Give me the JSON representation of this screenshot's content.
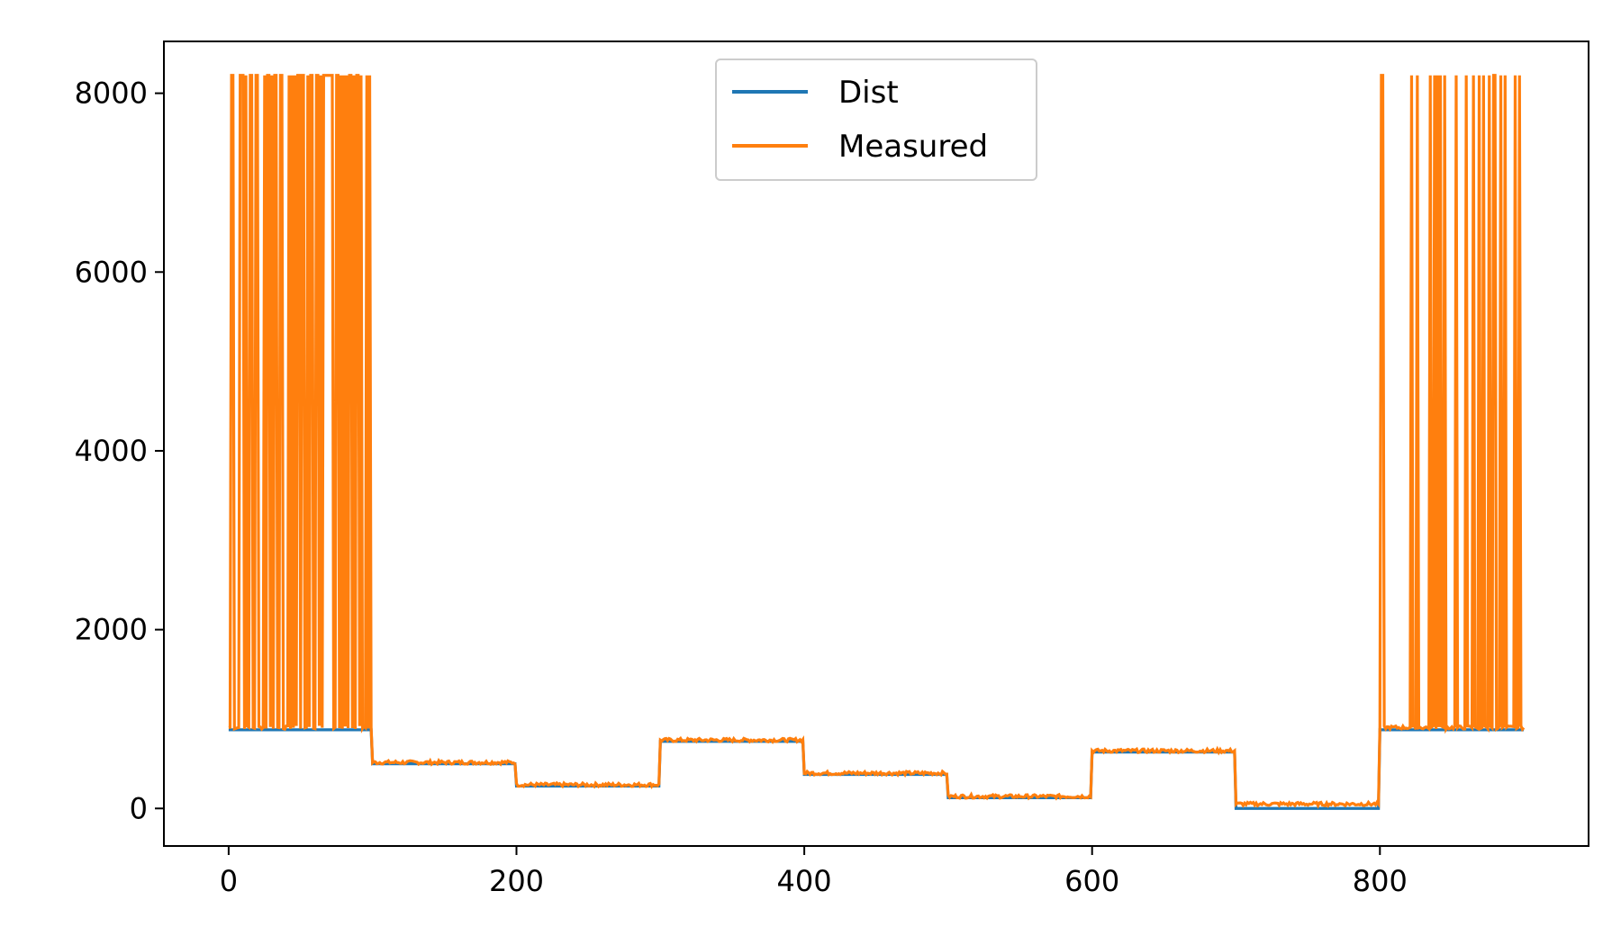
{
  "chart_data": {
    "type": "line",
    "title": "",
    "xlabel": "",
    "ylabel": "",
    "xlim": [
      -45,
      945
    ],
    "ylim": [
      -420,
      8580
    ],
    "x_ticks": [
      0,
      200,
      400,
      600,
      800
    ],
    "y_ticks": [
      0,
      2000,
      4000,
      6000,
      8000
    ],
    "grid": false,
    "legend_position": "upper center",
    "levels": [
      {
        "x_start": 0,
        "x_end": 100,
        "dist": 880,
        "measured": 905
      },
      {
        "x_start": 100,
        "x_end": 200,
        "dist": 500,
        "measured": 515
      },
      {
        "x_start": 200,
        "x_end": 300,
        "dist": 250,
        "measured": 265
      },
      {
        "x_start": 300,
        "x_end": 400,
        "dist": 750,
        "measured": 765
      },
      {
        "x_start": 400,
        "x_end": 500,
        "dist": 380,
        "measured": 395
      },
      {
        "x_start": 500,
        "x_end": 600,
        "dist": 120,
        "measured": 135
      },
      {
        "x_start": 600,
        "x_end": 700,
        "dist": 630,
        "measured": 645
      },
      {
        "x_start": 700,
        "x_end": 800,
        "dist": 0,
        "measured": 50
      },
      {
        "x_start": 800,
        "x_end": 900,
        "dist": 880,
        "measured": 905
      }
    ],
    "spike_value": 8200,
    "spike_x": [
      2,
      3,
      8,
      9,
      10,
      12,
      15,
      16,
      19,
      20,
      25,
      27,
      28,
      30,
      32,
      33,
      36,
      37,
      42,
      44,
      46,
      48,
      49,
      51,
      52,
      55,
      57,
      58,
      61,
      62,
      64,
      66,
      67,
      68,
      69,
      70,
      71,
      72,
      75,
      76,
      78,
      80,
      82,
      84,
      85,
      87,
      89,
      90,
      92,
      96,
      98,
      801,
      802,
      822,
      826,
      835,
      838,
      840,
      842,
      845,
      853,
      860,
      865,
      869,
      872,
      876,
      879,
      880,
      884,
      887,
      894,
      897
    ],
    "series": [
      {
        "name": "Dist",
        "color": "#1f77b4"
      },
      {
        "name": "Measured",
        "color": "#ff7f0e"
      }
    ]
  }
}
